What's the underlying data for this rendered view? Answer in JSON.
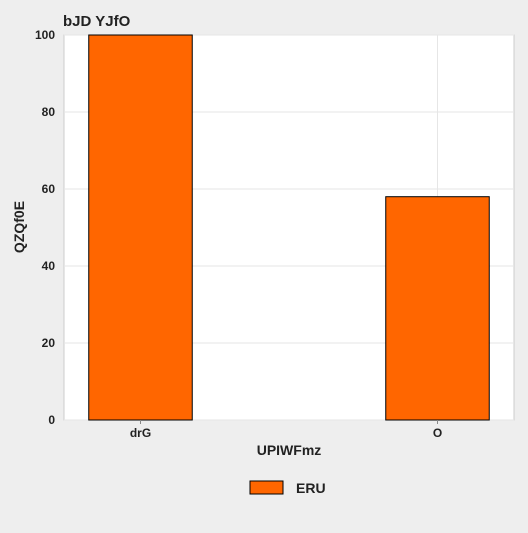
{
  "chart_data": {
    "type": "bar",
    "title": "bJD YJfO",
    "xlabel": "UPIWFmz",
    "ylabel": "QZQf0E",
    "categories": [
      "drG",
      "O"
    ],
    "series": [
      {
        "name": "ERU",
        "values": [
          100,
          58
        ],
        "color": "#ff6600"
      }
    ],
    "ylim": [
      0,
      100
    ],
    "yticks": [
      0,
      20,
      40,
      60,
      80,
      100
    ],
    "grid": true,
    "legend_position": "bottom-center",
    "colors": {
      "plot_background": "#ffffff",
      "page_background": "#eeeeee",
      "bar_edge": "#000000"
    }
  }
}
